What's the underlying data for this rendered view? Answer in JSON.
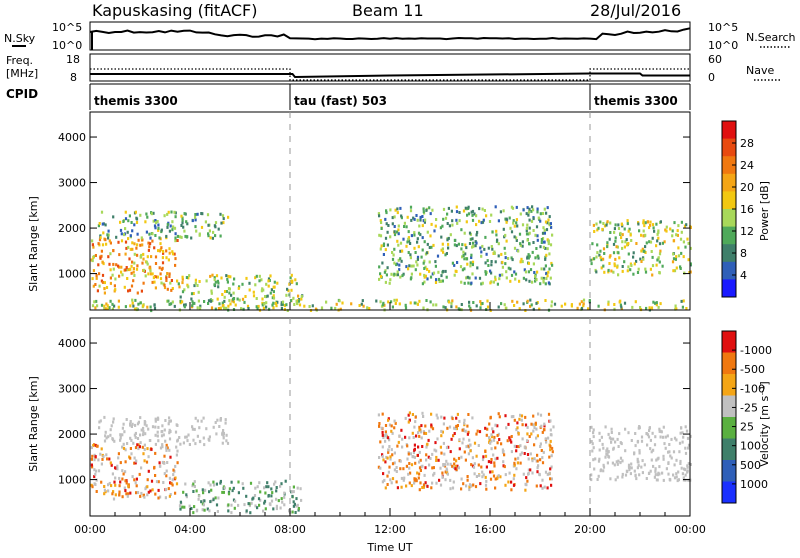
{
  "header": {
    "station": "Kapuskasing (fitACF)",
    "beam": "Beam 11",
    "date": "28/Jul/2016"
  },
  "nsky_panel": {
    "left_label": "N.Sky",
    "right_label": "N.Search",
    "left_ticks": [
      "10^5",
      "10^0"
    ],
    "right_ticks": [
      "10^5",
      "10^0"
    ]
  },
  "freq_panel": {
    "left_label_1": "Freq.",
    "left_label_2": "[MHz]",
    "right_label": "Nave",
    "left_ticks": [
      "18",
      "8"
    ],
    "right_ticks": [
      "60",
      "0"
    ]
  },
  "cpid_panel": {
    "label": "CPID",
    "modes": [
      {
        "name": "themis 3300",
        "start_hour": 0
      },
      {
        "name": "tau (fast) 503",
        "start_hour": 8
      },
      {
        "name": "themis 3300",
        "start_hour": 20
      }
    ]
  },
  "chart_data": [
    {
      "type": "heatmap",
      "xlabel": "",
      "ylabel": "Slant Range [km]",
      "x_range_hours": [
        0,
        24
      ],
      "ylim": [
        200,
        4550
      ],
      "yticks": [
        "1000",
        "2000",
        "3000",
        "4000"
      ],
      "colorbar": {
        "label": "Power [dB]",
        "ticks": [
          "4",
          "8",
          "12",
          "16",
          "20",
          "24",
          "28"
        ],
        "colors": [
          "#1a1aff",
          "#2f5fb8",
          "#3f7f6a",
          "#4fa95a",
          "#a8d85a",
          "#f2c812",
          "#f4a516",
          "#f07810",
          "#e84a10",
          "#e01010"
        ]
      },
      "series": [
        {
          "x_hours": [
            0,
            3.5
          ],
          "range_km": [
            600,
            1800
          ],
          "value_db": 20
        },
        {
          "x_hours": [
            0.3,
            5.5
          ],
          "range_km": [
            1800,
            2400
          ],
          "value_db": 8
        },
        {
          "x_hours": [
            3.5,
            8.5
          ],
          "range_km": [
            300,
            1000
          ],
          "value_db": 12
        },
        {
          "x_hours": [
            11.5,
            18.5
          ],
          "range_km": [
            800,
            2500
          ],
          "value_db": 8
        },
        {
          "x_hours": [
            20,
            24
          ],
          "range_km": [
            1000,
            2200
          ],
          "value_db": 12
        },
        {
          "x_hours": [
            0,
            24
          ],
          "range_km": [
            220,
            450
          ],
          "value_db": 12
        }
      ]
    },
    {
      "type": "heatmap",
      "xlabel": "Time UT",
      "ylabel": "Slant Range [km]",
      "x_range_hours": [
        0,
        24
      ],
      "xticks": [
        "00:00",
        "04:00",
        "08:00",
        "12:00",
        "16:00",
        "20:00",
        "00:00"
      ],
      "ylim": [
        200,
        4550
      ],
      "yticks": [
        "1000",
        "2000",
        "3000",
        "4000"
      ],
      "colorbar": {
        "label": "Velocity [m s⁻¹]",
        "ticks": [
          "1000",
          "500",
          "100",
          "25",
          "-25",
          "-100",
          "-500",
          "-1000"
        ],
        "colors": [
          "#1a30ff",
          "#2f5fb8",
          "#3f7f6a",
          "#5ab040",
          "#c0c0c0",
          "#f4a516",
          "#f07810",
          "#e01010"
        ]
      },
      "series": [
        {
          "x_hours": [
            0,
            3.5
          ],
          "range_km": [
            600,
            1800
          ],
          "value_ms": -200
        },
        {
          "x_hours": [
            0.3,
            5.5
          ],
          "range_km": [
            1800,
            2400
          ],
          "value_ms": 0
        },
        {
          "x_hours": [
            3.5,
            8.5
          ],
          "range_km": [
            300,
            1000
          ],
          "value_ms": 150
        },
        {
          "x_hours": [
            11.5,
            18.5
          ],
          "range_km": [
            800,
            2500
          ],
          "value_ms": -150
        },
        {
          "x_hours": [
            20,
            24
          ],
          "range_km": [
            1000,
            2200
          ],
          "value_ms": 0
        }
      ]
    }
  ]
}
